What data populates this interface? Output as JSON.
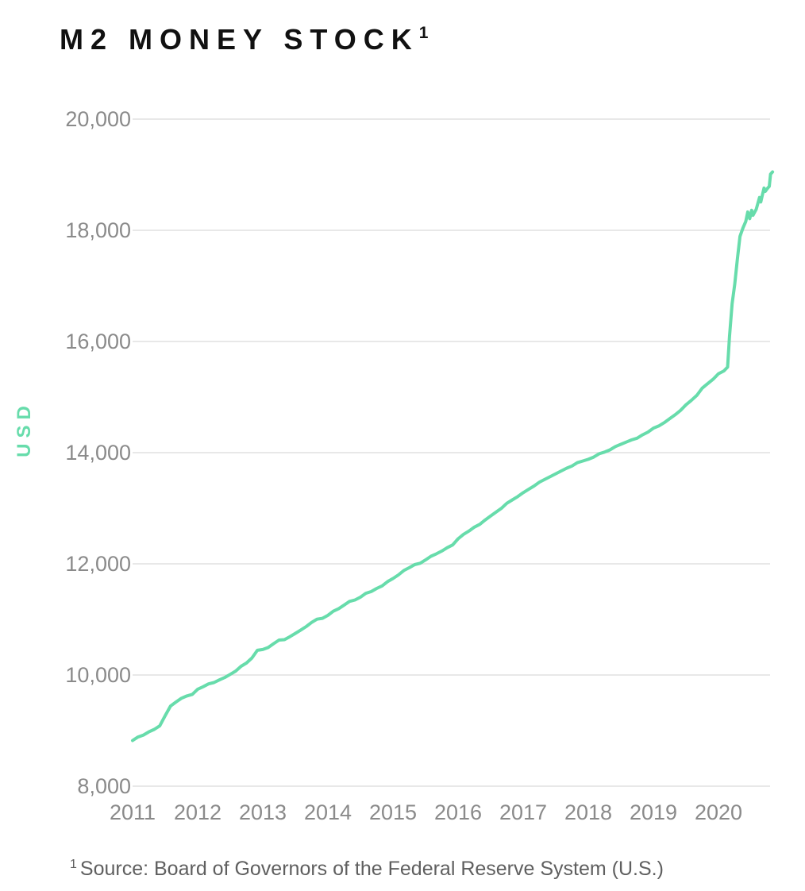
{
  "page": {
    "background": "#ffffff"
  },
  "footnote": {
    "marker": "1",
    "text": "Source: Board of Governors of the Federal Reserve System (U.S.)"
  },
  "chart_data": {
    "type": "line",
    "title": "M2 MONEY STOCK",
    "title_footnote_marker": "1",
    "ylabel": "USD",
    "xlabel": "",
    "ylim": [
      8000,
      20000
    ],
    "xlim": [
      2011.0,
      2020.9
    ],
    "grid": "horizontal-only",
    "legend_position": "none",
    "colors": {
      "line": "#67dcab",
      "axis_label": "#67dcab",
      "tick_label": "#8a8a8a",
      "gridline": "#d9d9d9",
      "title": "#111111",
      "footnote": "#5f5f5f"
    },
    "yticks": {
      "values": [
        8000,
        10000,
        12000,
        14000,
        16000,
        18000,
        20000
      ],
      "labels": [
        "8,000",
        "10,000",
        "12,000",
        "14,000",
        "16,000",
        "18,000",
        "20,000"
      ]
    },
    "xticks": {
      "values": [
        2011,
        2012,
        2013,
        2014,
        2015,
        2016,
        2017,
        2018,
        2019,
        2020
      ],
      "labels": [
        "2011",
        "2012",
        "2013",
        "2014",
        "2015",
        "2016",
        "2017",
        "2018",
        "2019",
        "2020"
      ]
    },
    "series": [
      {
        "name": "M2 Money Stock",
        "x": [
          2011.0,
          2011.083,
          2011.167,
          2011.25,
          2011.333,
          2011.417,
          2011.5,
          2011.583,
          2011.667,
          2011.75,
          2011.833,
          2011.917,
          2012.0,
          2012.083,
          2012.167,
          2012.25,
          2012.333,
          2012.417,
          2012.5,
          2012.583,
          2012.667,
          2012.75,
          2012.833,
          2012.917,
          2013.0,
          2013.083,
          2013.167,
          2013.25,
          2013.333,
          2013.417,
          2013.5,
          2013.583,
          2013.667,
          2013.75,
          2013.833,
          2013.917,
          2014.0,
          2014.083,
          2014.167,
          2014.25,
          2014.333,
          2014.417,
          2014.5,
          2014.583,
          2014.667,
          2014.75,
          2014.833,
          2014.917,
          2015.0,
          2015.083,
          2015.167,
          2015.25,
          2015.333,
          2015.417,
          2015.5,
          2015.583,
          2015.667,
          2015.75,
          2015.833,
          2015.917,
          2016.0,
          2016.083,
          2016.167,
          2016.25,
          2016.333,
          2016.417,
          2016.5,
          2016.583,
          2016.667,
          2016.75,
          2016.833,
          2016.917,
          2017.0,
          2017.083,
          2017.167,
          2017.25,
          2017.333,
          2017.417,
          2017.5,
          2017.583,
          2017.667,
          2017.75,
          2017.833,
          2017.917,
          2018.0,
          2018.083,
          2018.167,
          2018.25,
          2018.333,
          2018.417,
          2018.5,
          2018.583,
          2018.667,
          2018.75,
          2018.833,
          2018.917,
          2019.0,
          2019.083,
          2019.167,
          2019.25,
          2019.333,
          2019.417,
          2019.5,
          2019.583,
          2019.667,
          2019.75,
          2019.833,
          2019.917,
          2020.0,
          2020.083,
          2020.14,
          2020.17,
          2020.21,
          2020.25,
          2020.29,
          2020.33,
          2020.375,
          2020.42,
          2020.45,
          2020.48,
          2020.51,
          2020.53,
          2020.58,
          2020.63,
          2020.65,
          2020.67,
          2020.7,
          2020.72,
          2020.75,
          2020.78,
          2020.8,
          2020.83
        ],
        "y": [
          8822,
          8884,
          8920,
          8977,
          9021,
          9084,
          9267,
          9442,
          9515,
          9581,
          9623,
          9652,
          9745,
          9788,
          9840,
          9865,
          9911,
          9955,
          10012,
          10070,
          10157,
          10216,
          10305,
          10444,
          10459,
          10495,
          10565,
          10629,
          10635,
          10690,
          10748,
          10808,
          10871,
          10946,
          11004,
          11020,
          11073,
          11147,
          11194,
          11259,
          11325,
          11350,
          11400,
          11470,
          11501,
          11557,
          11603,
          11680,
          11735,
          11800,
          11880,
          11930,
          11986,
          12010,
          12070,
          12135,
          12180,
          12230,
          12290,
          12340,
          12450,
          12530,
          12590,
          12660,
          12710,
          12790,
          12860,
          12930,
          13000,
          13090,
          13150,
          13210,
          13280,
          13340,
          13400,
          13470,
          13520,
          13570,
          13620,
          13670,
          13720,
          13760,
          13820,
          13850,
          13880,
          13920,
          13980,
          14010,
          14050,
          14110,
          14150,
          14190,
          14230,
          14260,
          14320,
          14370,
          14440,
          14480,
          14540,
          14610,
          14680,
          14760,
          14860,
          14940,
          15030,
          15160,
          15240,
          15320,
          15420,
          15470,
          15540,
          16090,
          16680,
          17030,
          17480,
          17890,
          18040,
          18160,
          18330,
          18210,
          18360,
          18270,
          18380,
          18590,
          18510,
          18610,
          18760,
          18700,
          18750,
          18790,
          19010,
          19050
        ]
      }
    ]
  }
}
